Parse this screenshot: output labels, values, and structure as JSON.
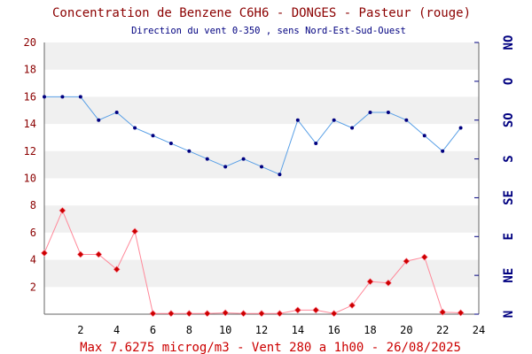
{
  "chart_data": {
    "type": "line",
    "title": "Concentration de Benzene C6H6  -   DONGES - Pasteur (rouge)",
    "subtitle": "Direction du vent 0-350 , sens Nord-Est-Sud-Ouest",
    "footer": "Max 7.6275 microg/m3 - Vent 280  a 1h00 - 26/08/2025",
    "x_ticks": [
      "2",
      "4",
      "6",
      "8",
      "10",
      "12",
      "14",
      "16",
      "18",
      "20",
      "22",
      "24"
    ],
    "y_ticks": [
      "2",
      "4",
      "6",
      "8",
      "10",
      "12",
      "14",
      "16",
      "18",
      "20"
    ],
    "right_ticks": [
      "N",
      "NE",
      "E",
      "SE",
      "S",
      "SO",
      "O",
      "NO"
    ],
    "xlim": [
      0,
      24
    ],
    "ylim": [
      0,
      20
    ],
    "right_lim": [
      0,
      350
    ],
    "series": [
      {
        "color": "#cc0000",
        "x": [
          0,
          1,
          2,
          3,
          4,
          5,
          6,
          7,
          8,
          9,
          10,
          11,
          12,
          13,
          14,
          15,
          16,
          17,
          18,
          19,
          20,
          21,
          22,
          23
        ],
        "values": [
          4.5,
          7.63,
          4.4,
          4.4,
          3.3,
          6.1,
          0.05,
          0.05,
          0.05,
          0.05,
          0.1,
          0.05,
          0.05,
          0.05,
          0.3,
          0.3,
          0.05,
          0.65,
          2.4,
          2.3,
          3.9,
          4.2,
          0.15,
          0.1
        ]
      },
      {
        "color": "#000080",
        "x": [
          0,
          1,
          2,
          3,
          4,
          5,
          6,
          7,
          8,
          9,
          10,
          11,
          12,
          13,
          14,
          15,
          16,
          17,
          18,
          19,
          20,
          21,
          22,
          23
        ],
        "values": [
          280,
          280,
          280,
          250,
          260,
          240,
          230,
          220,
          210,
          200,
          190,
          200,
          190,
          180,
          250,
          220,
          250,
          240,
          260,
          260,
          250,
          230,
          210,
          240
        ]
      }
    ],
    "colors": {
      "title": "#8b0000",
      "subtitle": "#000080",
      "footer": "#cc0000",
      "axis_text_left": "#8b0000",
      "axis_text_right": "#000080",
      "band": "#f0f0f0",
      "benzene_line": "#ff8899",
      "benzene_marker": "#cc0000",
      "wind_line": "#5aa0e6",
      "wind_marker": "#000080"
    }
  }
}
